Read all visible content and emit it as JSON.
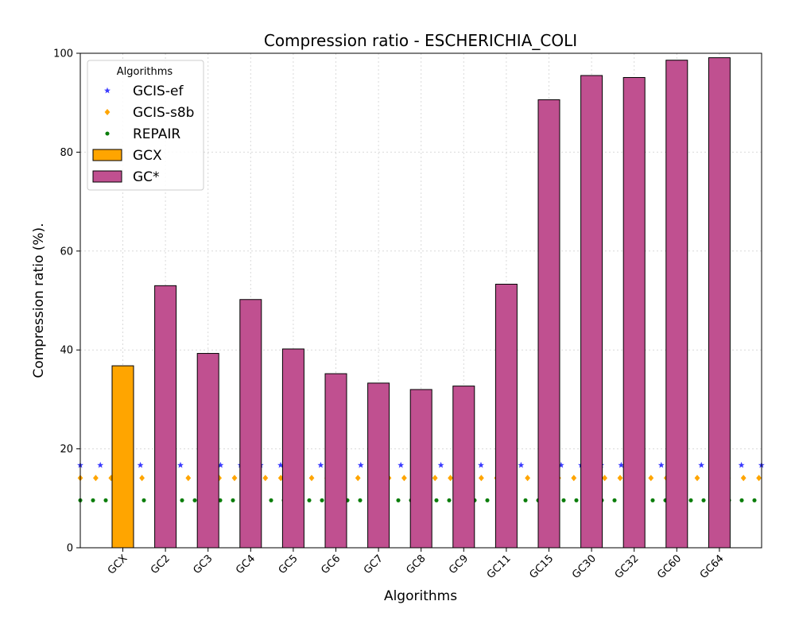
{
  "chart_data": {
    "type": "bar",
    "title": "Compression ratio -  ESCHERICHIA_COLI",
    "xlabel": "Algorithms",
    "ylabel": "Compression ratio (%).",
    "ylim": [
      0,
      100
    ],
    "yticks": [
      0,
      20,
      40,
      60,
      80,
      100
    ],
    "grid": true,
    "categories": [
      "GCX",
      "GC2",
      "GC3",
      "GC4",
      "GC5",
      "GC6",
      "GC7",
      "GC8",
      "GC9",
      "GC11",
      "GC15",
      "GC30",
      "GC32",
      "GC60",
      "GC64"
    ],
    "values": [
      36.8,
      53.0,
      39.3,
      50.2,
      40.2,
      35.2,
      33.3,
      32.0,
      32.7,
      53.3,
      90.6,
      95.5,
      95.1,
      98.6,
      99.1
    ],
    "bar_groups": [
      "GCX",
      "GC*",
      "GC*",
      "GC*",
      "GC*",
      "GC*",
      "GC*",
      "GC*",
      "GC*",
      "GC*",
      "GC*",
      "GC*",
      "GC*",
      "GC*",
      "GC*"
    ],
    "reference_lines": [
      {
        "name": "GCIS-ef",
        "value": 16.7,
        "marker": "star",
        "color": "#3b3bff"
      },
      {
        "name": "GCIS-s8b",
        "value": 14.1,
        "marker": "diamond",
        "color": "#ffa500"
      },
      {
        "name": "REPAIR",
        "value": 9.6,
        "marker": "circle",
        "color": "#0a7d0a"
      }
    ],
    "legend": {
      "title": "Algorithms",
      "placement": "top-left",
      "entries": [
        {
          "name": "GCIS-ef",
          "kind": "star",
          "color": "#3b3bff"
        },
        {
          "name": "GCIS-s8b",
          "kind": "diamond",
          "color": "#ffa500"
        },
        {
          "name": "REPAIR",
          "kind": "circle",
          "color": "#0a7d0a"
        },
        {
          "name": "GCX",
          "kind": "bar",
          "color": "#ffa500"
        },
        {
          "name": "GC*",
          "kind": "bar",
          "color": "#c05090"
        }
      ]
    },
    "colors": {
      "GCX": "#ffa500",
      "GC*": "#c05090",
      "edge": "#000000",
      "grid": "#d9d9d9"
    }
  }
}
